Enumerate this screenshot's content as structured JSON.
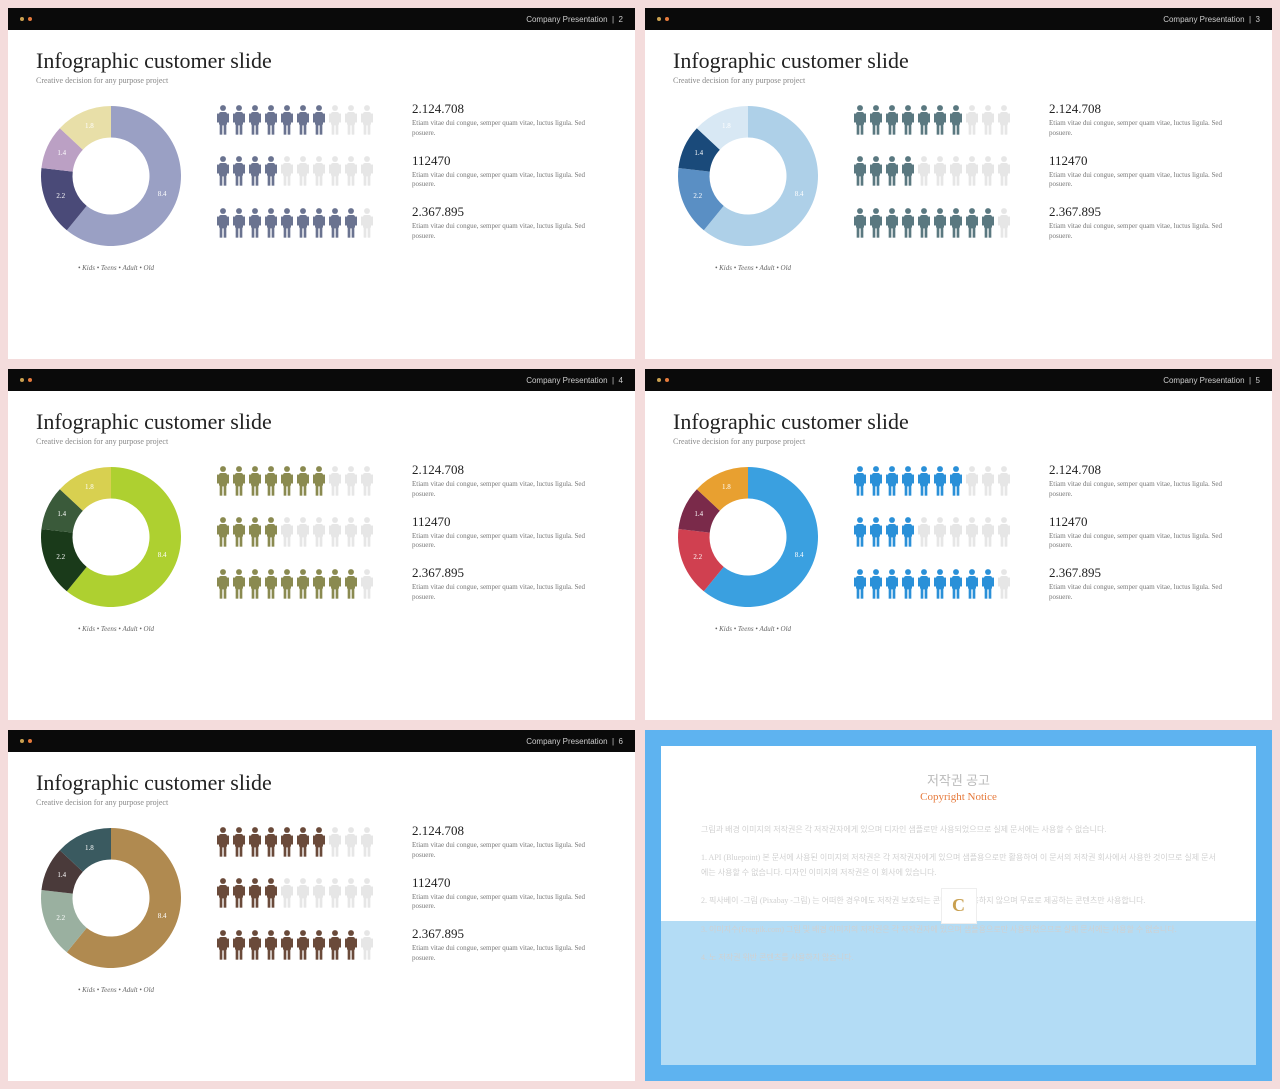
{
  "header_text": "Company Presentation",
  "header_dot_colors": [
    "#c9a050",
    "#e67a3c"
  ],
  "title": "Infographic customer slide",
  "subtitle": "Creative decision for any purpose project",
  "legend": "• Kids  • Teens  • Adult  • Old",
  "donut": {
    "inner_ratio": 0.55,
    "slices": [
      {
        "value": 8.4,
        "label": "8.4"
      },
      {
        "value": 2.2,
        "label": "2.2"
      },
      {
        "value": 1.4,
        "label": "1.4"
      },
      {
        "value": 1.8,
        "label": "1.8"
      }
    ]
  },
  "stats": [
    {
      "num": "2.124.708",
      "desc": "Etiam vitae dui congue, semper quam vitae, luctus ligula. Sed posuere.",
      "filled": 7
    },
    {
      "num": "112470",
      "desc": "Etiam vitae dui congue, semper quam vitae, luctus ligula. Sed posuere.",
      "filled": 4
    },
    {
      "num": "2.367.895",
      "desc": "Etiam vitae dui congue, semper quam vitae, luctus ligula. Sed posuere.",
      "filled": 9
    }
  ],
  "total_people": 10,
  "empty_person_color": "#e6e6e6",
  "slides": [
    {
      "page": "2",
      "donut_colors": [
        "#9aa0c4",
        "#4a4a78",
        "#bba0c4",
        "#e8dfa8"
      ],
      "person_color": "#6a7390"
    },
    {
      "page": "3",
      "donut_colors": [
        "#aed0e8",
        "#5a8fc4",
        "#1a4a7a",
        "#d8e8f4"
      ],
      "person_color": "#5a7880"
    },
    {
      "page": "4",
      "donut_colors": [
        "#aed030",
        "#1a3a1a",
        "#3a5a3a",
        "#d8d050"
      ],
      "person_color": "#8a8a50"
    },
    {
      "page": "5",
      "donut_colors": [
        "#3aa0e0",
        "#d04050",
        "#7a2a4a",
        "#e8a030"
      ],
      "person_color": "#2a90d8"
    },
    {
      "page": "6",
      "donut_colors": [
        "#b08a50",
        "#9ab0a0",
        "#4a3a3a",
        "#3a5a60"
      ],
      "person_color": "#6a4a3a"
    }
  ],
  "copyright": {
    "title_kr": "저작권 공고",
    "title_en": "Copyright Notice",
    "paragraphs": [
      "그림과 배경 이미지의 저작권은 각 저작권자에게 있으며 디자인 샘플로만 사용되었으므로 실제 문서에는 사용할 수 없습니다.",
      "1. API (Bluepoint) 본 문서에 사용된 이미지의 저작권은 각 저작권자에게 있으며 샘플용으로만 활용하여 이 문서의 저작권 회사에서 사용한 것이므로 실제 문서에는 사용할 수 없습니다. 디자인 이미지의 저작권은 이 회사에 있습니다.",
      "2. 픽사베이 -그림 (Pixabay -그림) 는 어떠한 경우에도 저작권 보호되는 콘텐츠를 사용하지 않으며 무료로 제공하는 콘텐츠만 사용합니다.",
      "3. 이미지수(Freepik.com) 그림 및 배경 이미지의 저작권은 각 저작권자에 있으며 샘플용으로만 사용되었으므로 실제 문서에는 사용할 수 없습니다.",
      "4. 노 저작권 위반 콘텐츠를 사용하지 않습니다."
    ]
  }
}
